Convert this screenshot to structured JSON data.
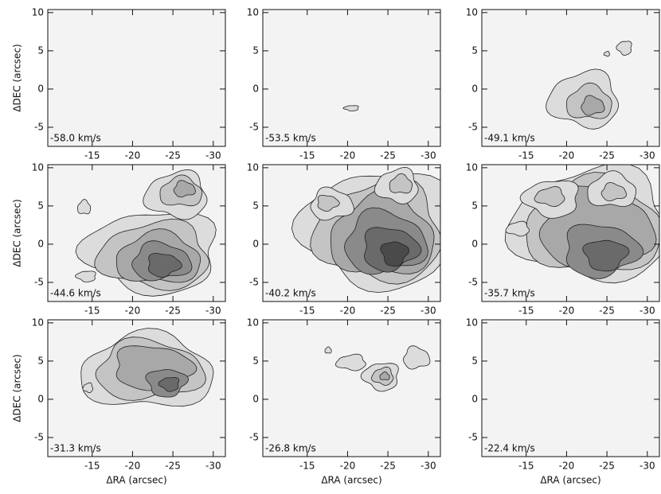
{
  "chart_data": [
    {
      "type": "contour",
      "label": "-58.0 km/s",
      "xlim": [
        -9.5,
        -31.5
      ],
      "ylim": [
        -7.5,
        10.4
      ],
      "xticks": [
        -15,
        -20,
        -25,
        -30
      ],
      "yticks": [
        -5,
        0,
        5,
        10
      ],
      "ylabel": "ΔDEC (arcsec)"
    },
    {
      "type": "contour",
      "label": "-53.5 km/s",
      "xlim": [
        -9.5,
        -31.5
      ],
      "ylim": [
        -7.5,
        10.4
      ],
      "xticks": [
        -15,
        -20,
        -25,
        -30
      ],
      "yticks": [
        -5,
        0,
        5,
        10
      ]
    },
    {
      "type": "contour",
      "label": "-49.1 km/s",
      "xlim": [
        -9.5,
        -31.5
      ],
      "ylim": [
        -7.5,
        10.4
      ],
      "xticks": [
        -15,
        -20,
        -25,
        -30
      ],
      "yticks": [
        -5,
        0,
        5,
        10
      ]
    },
    {
      "type": "contour",
      "label": "-44.6 km/s",
      "xlim": [
        -9.5,
        -31.5
      ],
      "ylim": [
        -7.5,
        10.4
      ],
      "xticks": [
        -15,
        -20,
        -25,
        -30
      ],
      "yticks": [
        -5,
        0,
        5,
        10
      ],
      "ylabel": "ΔDEC (arcsec)"
    },
    {
      "type": "contour",
      "label": "-40.2 km/s",
      "xlim": [
        -9.5,
        -31.5
      ],
      "ylim": [
        -7.5,
        10.4
      ],
      "xticks": [
        -15,
        -20,
        -25,
        -30
      ],
      "yticks": [
        -5,
        0,
        5,
        10
      ]
    },
    {
      "type": "contour",
      "label": "-35.7 km/s",
      "xlim": [
        -9.5,
        -31.5
      ],
      "ylim": [
        -7.5,
        10.4
      ],
      "xticks": [
        -15,
        -20,
        -25,
        -30
      ],
      "yticks": [
        -5,
        0,
        5,
        10
      ]
    },
    {
      "type": "contour",
      "label": "-31.3 km/s",
      "xlim": [
        -9.5,
        -31.5
      ],
      "ylim": [
        -7.5,
        10.4
      ],
      "xticks": [
        -15,
        -20,
        -25,
        -30
      ],
      "yticks": [
        -5,
        0,
        5,
        10
      ],
      "ylabel": "ΔDEC (arcsec)",
      "xlabel": "ΔRA (arcsec)"
    },
    {
      "type": "contour",
      "label": "-26.8 km/s",
      "xlim": [
        -9.5,
        -31.5
      ],
      "ylim": [
        -7.5,
        10.4
      ],
      "xticks": [
        -15,
        -20,
        -25,
        -30
      ],
      "yticks": [
        -5,
        0,
        5,
        10
      ],
      "xlabel": "ΔRA (arcsec)"
    },
    {
      "type": "contour",
      "label": "-22.4 km/s",
      "xlim": [
        -9.5,
        -31.5
      ],
      "ylim": [
        -7.5,
        10.4
      ],
      "xticks": [
        -15,
        -20,
        -25,
        -30
      ],
      "yticks": [
        -5,
        0,
        5,
        10
      ],
      "xlabel": "ΔRA (arcsec)"
    }
  ]
}
